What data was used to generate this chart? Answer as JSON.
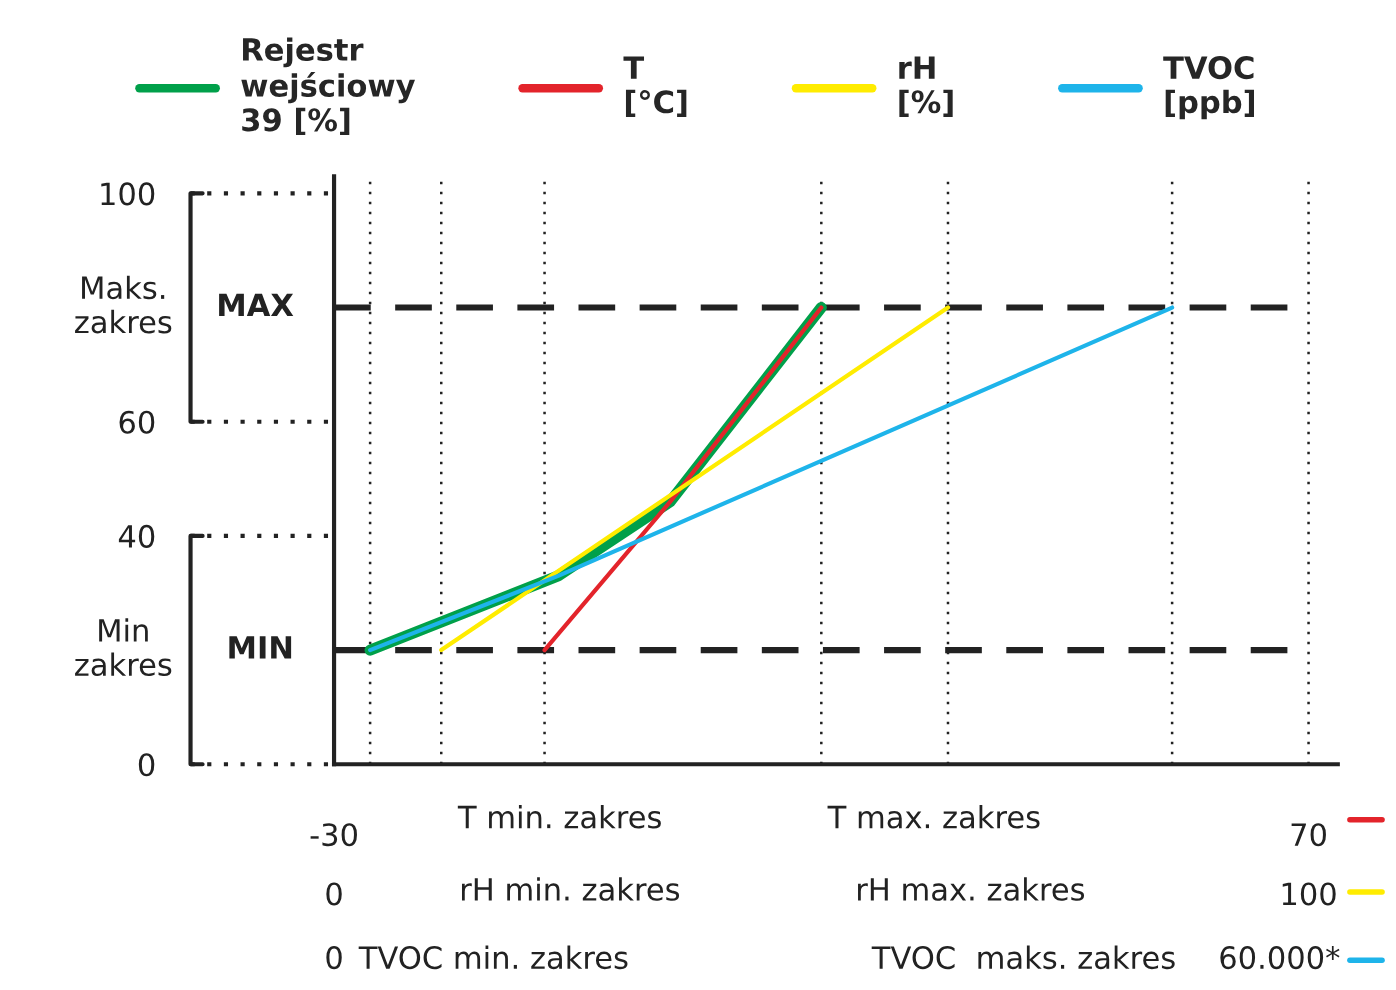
{
  "chart_data": {
    "type": "line",
    "series": [
      {
        "name": "Rejestr\nwejściowy\n39 [%]",
        "color": "#00a04a",
        "x": [
          -26.3,
          -7,
          4.5,
          20
        ],
        "values": [
          20,
          33,
          46,
          80
        ]
      },
      {
        "name": "T\n[°C]",
        "color": "#e3242b",
        "x": [
          -8.4,
          4.5,
          20
        ],
        "values": [
          20,
          46,
          80
        ]
      },
      {
        "name": "rH\n[%]",
        "color": "#ffec00",
        "x": [
          -19,
          33
        ],
        "values": [
          20,
          80
        ]
      },
      {
        "name": "TVOC\n[ppb]",
        "color": "#1eb4ea",
        "x": [
          -26.3,
          -7,
          56
        ],
        "values": [
          20,
          33,
          80
        ]
      }
    ],
    "xlim": [
      -30,
      73
    ],
    "xticks": [
      -30,
      70
    ],
    "x2lim": [
      0,
      103
    ],
    "x2ticks": [
      0,
      100
    ],
    "ylim": [
      0,
      103
    ],
    "yticks": [
      0,
      40,
      60,
      100
    ],
    "ref_lines": [
      {
        "axis": "y",
        "value": 20,
        "label": "MIN",
        "line_style": "dashed",
        "color": "#222222"
      },
      {
        "axis": "y",
        "value": 80,
        "label": "MAX",
        "line_style": "dashed",
        "color": "#222222"
      },
      {
        "axis": "x",
        "value": -26.3,
        "label": null,
        "line_style": "dotted",
        "color": "#222222"
      },
      {
        "axis": "x",
        "value": -19,
        "label": null,
        "line_style": "dotted",
        "color": "#222222"
      },
      {
        "axis": "x",
        "value": -8.4,
        "label": null,
        "line_style": "dotted",
        "color": "#222222"
      },
      {
        "axis": "x",
        "value": 20,
        "label": null,
        "line_style": "dotted",
        "color": "#222222"
      },
      {
        "axis": "x",
        "value": 33,
        "label": null,
        "line_style": "dotted",
        "color": "#222222"
      },
      {
        "axis": "x",
        "value": 56,
        "label": null,
        "line_style": "dotted",
        "color": "#222222"
      },
      {
        "axis": "x",
        "value": 70,
        "label": null,
        "line_style": "dotted",
        "color": "#222222"
      }
    ],
    "annotations": [
      "T min. zakres",
      "T max. zakres",
      "rH min. zakres",
      "rH max. zakres",
      "TVOC min. zakres",
      "TVOC  maks. zakres",
      "0",
      "60.000*",
      "Min\nzakres",
      "Maks.\nzakres"
    ],
    "grid": false,
    "legend": "top",
    "line_style": "solid",
    "marker": "none"
  }
}
